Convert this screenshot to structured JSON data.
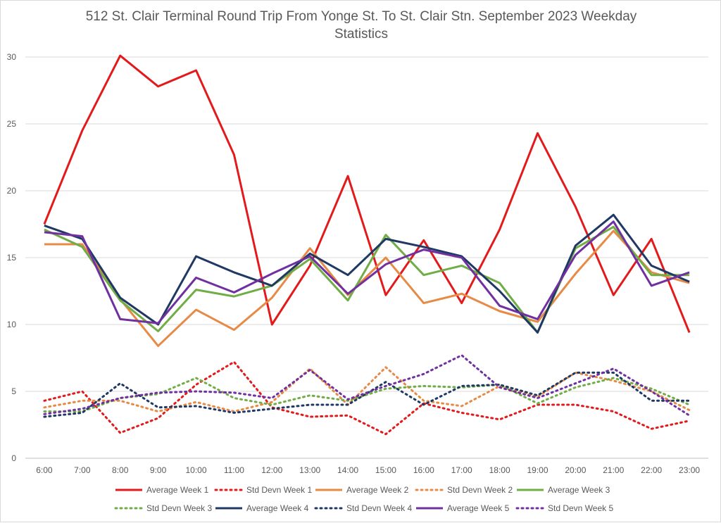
{
  "chart_data": {
    "type": "line",
    "title_line1": "512 St. Clair Terminal Round Trip From Yonge St. To St. Clair Stn. September 2023 Weekday",
    "title_line2": "Statistics",
    "xlabel": "",
    "ylabel": "",
    "categories": [
      "6:00",
      "7:00",
      "8:00",
      "9:00",
      "10:00",
      "11:00",
      "12:00",
      "13:00",
      "14:00",
      "15:00",
      "16:00",
      "17:00",
      "18:00",
      "19:00",
      "20:00",
      "21:00",
      "22:00",
      "23:00"
    ],
    "yticks": [
      0,
      5,
      10,
      15,
      20,
      25,
      30
    ],
    "ylim": [
      0,
      30
    ],
    "grid": "horizontal",
    "legend_position": "bottom",
    "series": [
      {
        "name": "Average Week 1",
        "color": "#e31a1c",
        "style": "solid",
        "values": [
          17.5,
          24.5,
          30.1,
          27.8,
          29.0,
          22.7,
          10.0,
          14.4,
          21.1,
          12.2,
          16.3,
          11.6,
          17.1,
          24.3,
          18.8,
          12.2,
          16.4,
          9.4
        ]
      },
      {
        "name": "Std Devn Week 1",
        "color": "#e31a1c",
        "style": "dotted",
        "values": [
          4.3,
          5.0,
          1.9,
          3.0,
          5.5,
          7.2,
          3.8,
          3.1,
          3.2,
          1.8,
          4.1,
          3.4,
          2.9,
          4.0,
          4.0,
          3.5,
          2.2,
          2.8
        ]
      },
      {
        "name": "Average Week 2",
        "color": "#e68a45",
        "style": "solid",
        "values": [
          16.0,
          16.0,
          11.9,
          8.4,
          11.1,
          9.6,
          12.0,
          15.7,
          12.2,
          15.0,
          11.6,
          12.3,
          11.0,
          10.2,
          13.8,
          17.0,
          13.9,
          13.1
        ]
      },
      {
        "name": "Std Devn Week 2",
        "color": "#e68a45",
        "style": "dotted",
        "values": [
          3.8,
          4.3,
          4.3,
          3.5,
          4.2,
          3.5,
          4.2,
          6.7,
          4.0,
          6.8,
          4.3,
          3.9,
          5.4,
          4.6,
          6.4,
          5.8,
          5.0,
          3.6
        ]
      },
      {
        "name": "Average Week 3",
        "color": "#70ad47",
        "style": "solid",
        "values": [
          17.1,
          15.8,
          11.8,
          9.5,
          12.6,
          12.1,
          12.9,
          14.9,
          11.8,
          16.7,
          13.7,
          14.4,
          13.1,
          9.4,
          15.7,
          17.3,
          13.7,
          13.7
        ]
      },
      {
        "name": "Std Devn Week 3",
        "color": "#70ad47",
        "style": "dotted",
        "values": [
          3.5,
          3.5,
          4.5,
          4.8,
          6.0,
          4.5,
          4.0,
          4.7,
          4.3,
          5.2,
          5.4,
          5.3,
          5.5,
          4.1,
          5.3,
          6.0,
          5.2,
          4.0
        ]
      },
      {
        "name": "Average Week 4",
        "color": "#1f3864",
        "style": "solid",
        "values": [
          17.4,
          16.4,
          12.0,
          10.0,
          15.1,
          13.9,
          12.9,
          15.3,
          13.7,
          16.4,
          15.8,
          15.1,
          12.5,
          9.4,
          15.9,
          18.2,
          14.4,
          13.2
        ]
      },
      {
        "name": "Std Devn Week 4",
        "color": "#1f3864",
        "style": "dotted",
        "values": [
          3.1,
          3.4,
          5.6,
          3.8,
          3.9,
          3.4,
          3.7,
          4.0,
          4.0,
          5.7,
          4.0,
          5.4,
          5.5,
          4.7,
          6.4,
          6.4,
          4.3,
          4.3
        ]
      },
      {
        "name": "Average Week 5",
        "color": "#7030a0",
        "style": "solid",
        "values": [
          16.9,
          16.6,
          10.4,
          10.1,
          13.5,
          12.4,
          13.8,
          15.1,
          12.3,
          14.5,
          15.6,
          15.0,
          11.4,
          10.4,
          15.2,
          17.7,
          12.9,
          13.9
        ]
      },
      {
        "name": "Std Devn Week 5",
        "color": "#7030a0",
        "style": "dotted",
        "values": [
          3.3,
          3.7,
          4.5,
          4.9,
          5.0,
          4.9,
          4.5,
          6.6,
          4.4,
          5.4,
          6.3,
          7.7,
          5.3,
          4.5,
          5.6,
          6.7,
          5.0,
          3.2
        ]
      }
    ]
  }
}
